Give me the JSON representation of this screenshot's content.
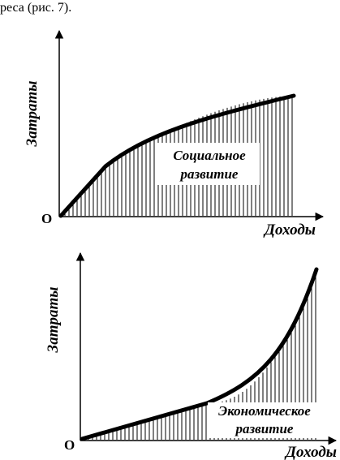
{
  "caption": "реса (рис. 7).",
  "diagrams": [
    {
      "y_axis_label": "Затраты",
      "x_axis_label": "Доходы",
      "origin_label": "O",
      "region_label_line1": "Социальное",
      "region_label_line2": "развитие"
    },
    {
      "y_axis_label": "Затраты",
      "x_axis_label": "Доходы",
      "origin_label": "O",
      "region_label_line1": "Экономическое",
      "region_label_line2": "развитие"
    }
  ]
}
